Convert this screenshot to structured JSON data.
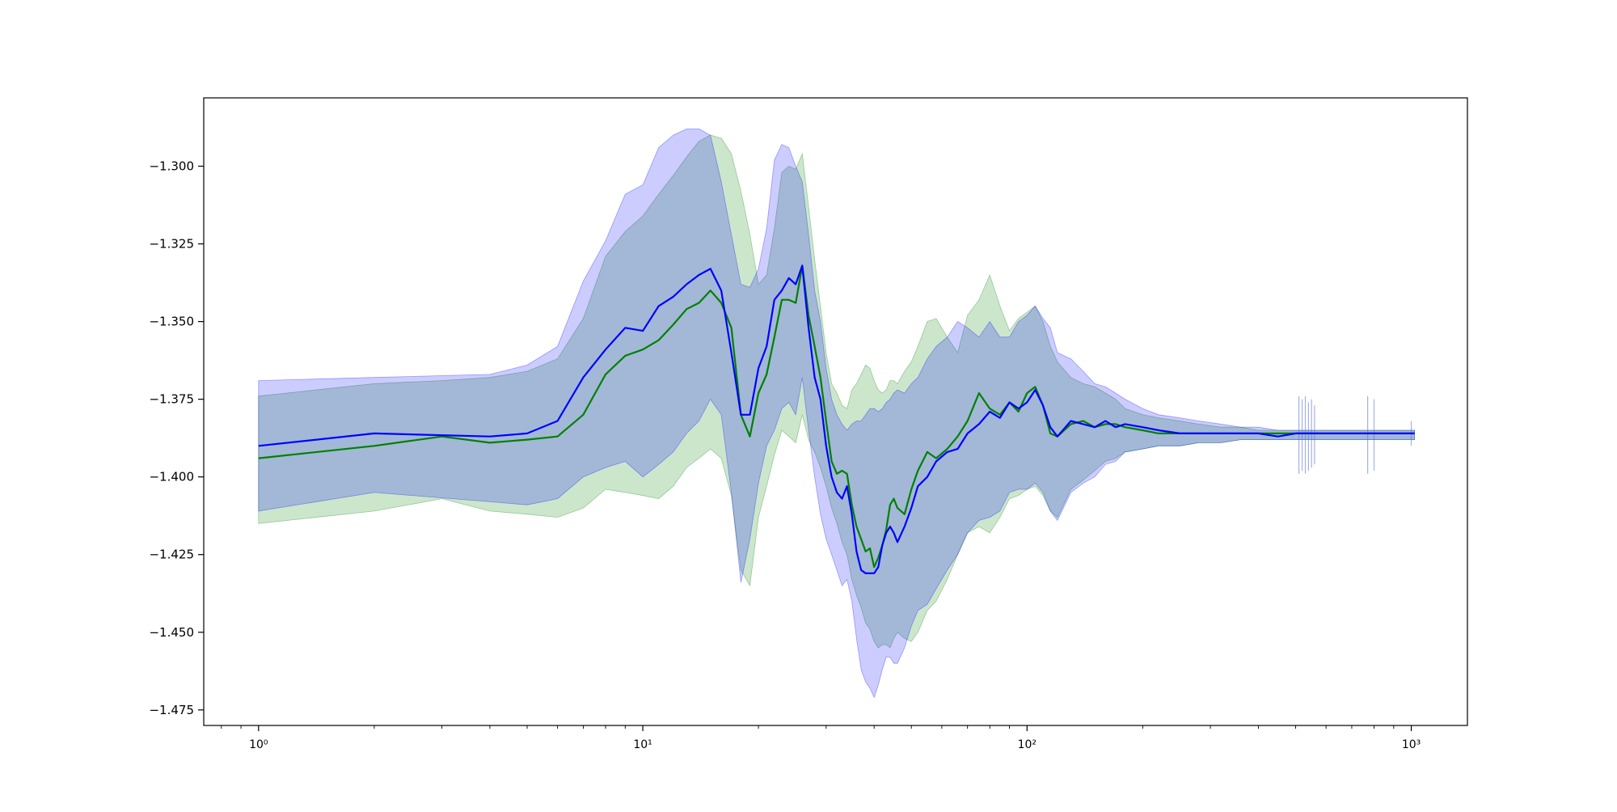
{
  "chart_data": {
    "type": "line",
    "title": "",
    "xlabel": "",
    "ylabel": "",
    "xscale": "log",
    "xlim": [
      0.72,
      1400
    ],
    "ylim": [
      -1.48,
      -1.278
    ],
    "grid": false,
    "legend": "none",
    "x_ticks": [
      {
        "value": 1,
        "label": "10⁰"
      },
      {
        "value": 10,
        "label": "10¹"
      },
      {
        "value": 100,
        "label": "10²"
      },
      {
        "value": 1000,
        "label": "10³"
      }
    ],
    "y_ticks": [
      {
        "value": -1.3,
        "label": "−1.300"
      },
      {
        "value": -1.325,
        "label": "−1.325"
      },
      {
        "value": -1.35,
        "label": "−1.350"
      },
      {
        "value": -1.375,
        "label": "−1.375"
      },
      {
        "value": -1.4,
        "label": "−1.400"
      },
      {
        "value": -1.425,
        "label": "−1.425"
      },
      {
        "value": -1.45,
        "label": "−1.450"
      },
      {
        "value": -1.475,
        "label": "−1.475"
      }
    ],
    "series": [
      {
        "color": "#0000ff",
        "band_color": "#0000ff",
        "band_opacity": 0.2,
        "x": [
          1,
          2,
          4,
          5,
          6,
          7,
          8,
          9,
          10,
          11,
          12,
          13,
          14,
          15,
          16,
          17,
          18,
          19,
          20,
          21,
          22,
          23,
          24,
          25,
          26,
          27,
          28,
          29,
          30,
          31,
          32,
          33,
          34,
          35,
          36,
          37,
          38,
          39,
          40,
          41,
          42,
          43,
          44,
          45,
          46,
          48,
          50,
          52,
          55,
          58,
          62,
          66,
          70,
          75,
          80,
          85,
          90,
          95,
          100,
          105,
          110,
          115,
          120,
          130,
          140,
          150,
          160,
          170,
          180,
          200,
          220,
          250,
          280,
          320,
          360,
          400,
          450,
          500,
          550,
          600,
          700,
          800,
          900,
          1000,
          1020
        ],
        "y": [
          -1.39,
          -1.386,
          -1.387,
          -1.386,
          -1.382,
          -1.368,
          -1.359,
          -1.352,
          -1.353,
          -1.345,
          -1.342,
          -1.338,
          -1.335,
          -1.333,
          -1.34,
          -1.36,
          -1.38,
          -1.38,
          -1.365,
          -1.358,
          -1.343,
          -1.34,
          -1.336,
          -1.338,
          -1.332,
          -1.352,
          -1.368,
          -1.375,
          -1.39,
          -1.4,
          -1.405,
          -1.407,
          -1.403,
          -1.412,
          -1.424,
          -1.43,
          -1.431,
          -1.431,
          -1.431,
          -1.429,
          -1.422,
          -1.418,
          -1.416,
          -1.418,
          -1.421,
          -1.416,
          -1.41,
          -1.403,
          -1.4,
          -1.395,
          -1.392,
          -1.391,
          -1.386,
          -1.383,
          -1.379,
          -1.381,
          -1.376,
          -1.378,
          -1.376,
          -1.372,
          -1.377,
          -1.384,
          -1.387,
          -1.382,
          -1.383,
          -1.384,
          -1.382,
          -1.384,
          -1.383,
          -1.384,
          -1.385,
          -1.386,
          -1.386,
          -1.386,
          -1.386,
          -1.386,
          -1.387,
          -1.386,
          -1.386,
          -1.386,
          -1.386,
          -1.386,
          -1.386,
          -1.386,
          -1.386
        ],
        "upper": [
          -1.369,
          -1.368,
          -1.367,
          -1.364,
          -1.358,
          -1.337,
          -1.324,
          -1.309,
          -1.306,
          -1.294,
          -1.29,
          -1.288,
          -1.288,
          -1.29,
          -1.305,
          -1.322,
          -1.338,
          -1.339,
          -1.333,
          -1.32,
          -1.298,
          -1.293,
          -1.294,
          -1.3,
          -1.305,
          -1.322,
          -1.34,
          -1.35,
          -1.365,
          -1.375,
          -1.38,
          -1.383,
          -1.385,
          -1.383,
          -1.382,
          -1.382,
          -1.38,
          -1.378,
          -1.378,
          -1.379,
          -1.378,
          -1.376,
          -1.375,
          -1.373,
          -1.372,
          -1.373,
          -1.37,
          -1.368,
          -1.362,
          -1.358,
          -1.355,
          -1.35,
          -1.352,
          -1.355,
          -1.35,
          -1.355,
          -1.355,
          -1.35,
          -1.348,
          -1.345,
          -1.349,
          -1.352,
          -1.36,
          -1.362,
          -1.366,
          -1.37,
          -1.371,
          -1.373,
          -1.375,
          -1.378,
          -1.38,
          -1.381,
          -1.382,
          -1.383,
          -1.384,
          -1.384,
          -1.385,
          -1.385,
          -1.385,
          -1.385,
          -1.385,
          -1.385,
          -1.385,
          -1.385,
          -1.385
        ],
        "lower": [
          -1.411,
          -1.405,
          -1.408,
          -1.409,
          -1.407,
          -1.4,
          -1.397,
          -1.395,
          -1.4,
          -1.396,
          -1.392,
          -1.386,
          -1.382,
          -1.375,
          -1.38,
          -1.405,
          -1.434,
          -1.42,
          -1.402,
          -1.39,
          -1.385,
          -1.378,
          -1.376,
          -1.38,
          -1.368,
          -1.385,
          -1.4,
          -1.412,
          -1.42,
          -1.425,
          -1.43,
          -1.435,
          -1.433,
          -1.44,
          -1.452,
          -1.462,
          -1.466,
          -1.468,
          -1.471,
          -1.467,
          -1.462,
          -1.458,
          -1.458,
          -1.46,
          -1.46,
          -1.455,
          -1.448,
          -1.443,
          -1.441,
          -1.436,
          -1.43,
          -1.425,
          -1.418,
          -1.414,
          -1.413,
          -1.411,
          -1.405,
          -1.404,
          -1.404,
          -1.402,
          -1.405,
          -1.411,
          -1.414,
          -1.405,
          -1.402,
          -1.4,
          -1.396,
          -1.395,
          -1.392,
          -1.391,
          -1.39,
          -1.39,
          -1.389,
          -1.389,
          -1.388,
          -1.388,
          -1.388,
          -1.388,
          -1.388,
          -1.388,
          -1.388,
          -1.388,
          -1.388,
          -1.388,
          -1.388
        ]
      },
      {
        "color": "#008000",
        "band_color": "#008000",
        "band_opacity": 0.2,
        "x": [
          1,
          2,
          3,
          4,
          5,
          6,
          7,
          8,
          9,
          10,
          11,
          12,
          13,
          14,
          15,
          16,
          17,
          18,
          19,
          20,
          21,
          22,
          23,
          24,
          25,
          26,
          27,
          28,
          29,
          30,
          31,
          32,
          33,
          34,
          35,
          36,
          37,
          38,
          39,
          40,
          41,
          42,
          43,
          44,
          45,
          46,
          48,
          50,
          52,
          55,
          58,
          62,
          66,
          70,
          75,
          80,
          85,
          90,
          95,
          100,
          105,
          110,
          115,
          120,
          130,
          140,
          150,
          160,
          170,
          180,
          200,
          220,
          250,
          280,
          320,
          360,
          400,
          450,
          500,
          550,
          600,
          700,
          800,
          900,
          1000,
          1020
        ],
        "y": [
          -1.394,
          -1.39,
          -1.387,
          -1.389,
          -1.388,
          -1.387,
          -1.38,
          -1.367,
          -1.361,
          -1.359,
          -1.356,
          -1.351,
          -1.346,
          -1.344,
          -1.34,
          -1.344,
          -1.352,
          -1.38,
          -1.387,
          -1.373,
          -1.367,
          -1.355,
          -1.343,
          -1.343,
          -1.344,
          -1.332,
          -1.348,
          -1.358,
          -1.368,
          -1.382,
          -1.395,
          -1.399,
          -1.398,
          -1.399,
          -1.409,
          -1.416,
          -1.42,
          -1.424,
          -1.423,
          -1.429,
          -1.426,
          -1.422,
          -1.417,
          -1.409,
          -1.407,
          -1.41,
          -1.412,
          -1.404,
          -1.398,
          -1.392,
          -1.394,
          -1.391,
          -1.387,
          -1.382,
          -1.373,
          -1.378,
          -1.38,
          -1.376,
          -1.379,
          -1.373,
          -1.371,
          -1.377,
          -1.386,
          -1.387,
          -1.383,
          -1.382,
          -1.384,
          -1.383,
          -1.383,
          -1.384,
          -1.385,
          -1.386,
          -1.386,
          -1.386,
          -1.386,
          -1.386,
          -1.386,
          -1.386,
          -1.386,
          -1.386,
          -1.386,
          -1.386,
          -1.386,
          -1.386,
          -1.386,
          -1.386
        ],
        "upper": [
          -1.374,
          -1.37,
          -1.369,
          -1.368,
          -1.366,
          -1.362,
          -1.349,
          -1.329,
          -1.321,
          -1.316,
          -1.309,
          -1.303,
          -1.297,
          -1.292,
          -1.29,
          -1.291,
          -1.296,
          -1.308,
          -1.322,
          -1.338,
          -1.335,
          -1.32,
          -1.302,
          -1.3,
          -1.301,
          -1.296,
          -1.313,
          -1.33,
          -1.345,
          -1.36,
          -1.37,
          -1.373,
          -1.377,
          -1.378,
          -1.372,
          -1.37,
          -1.367,
          -1.364,
          -1.365,
          -1.369,
          -1.372,
          -1.373,
          -1.372,
          -1.369,
          -1.369,
          -1.37,
          -1.366,
          -1.363,
          -1.358,
          -1.35,
          -1.349,
          -1.355,
          -1.36,
          -1.348,
          -1.343,
          -1.335,
          -1.345,
          -1.353,
          -1.349,
          -1.347,
          -1.345,
          -1.35,
          -1.358,
          -1.363,
          -1.368,
          -1.37,
          -1.371,
          -1.373,
          -1.375,
          -1.378,
          -1.38,
          -1.381,
          -1.382,
          -1.383,
          -1.384,
          -1.384,
          -1.385,
          -1.385,
          -1.385,
          -1.385,
          -1.385,
          -1.385,
          -1.385,
          -1.385,
          -1.385,
          -1.385
        ],
        "lower": [
          -1.415,
          -1.411,
          -1.407,
          -1.411,
          -1.412,
          -1.413,
          -1.41,
          -1.404,
          -1.405,
          -1.406,
          -1.407,
          -1.403,
          -1.397,
          -1.394,
          -1.391,
          -1.394,
          -1.406,
          -1.43,
          -1.435,
          -1.413,
          -1.403,
          -1.393,
          -1.385,
          -1.387,
          -1.389,
          -1.38,
          -1.388,
          -1.392,
          -1.397,
          -1.403,
          -1.41,
          -1.415,
          -1.421,
          -1.425,
          -1.433,
          -1.438,
          -1.442,
          -1.447,
          -1.449,
          -1.453,
          -1.455,
          -1.454,
          -1.454,
          -1.455,
          -1.452,
          -1.45,
          -1.452,
          -1.453,
          -1.45,
          -1.443,
          -1.44,
          -1.433,
          -1.425,
          -1.418,
          -1.416,
          -1.418,
          -1.413,
          -1.407,
          -1.406,
          -1.404,
          -1.403,
          -1.406,
          -1.411,
          -1.413,
          -1.404,
          -1.401,
          -1.398,
          -1.395,
          -1.394,
          -1.392,
          -1.391,
          -1.39,
          -1.39,
          -1.389,
          -1.389,
          -1.388,
          -1.388,
          -1.388,
          -1.388,
          -1.388,
          -1.388,
          -1.388,
          -1.388,
          -1.388,
          -1.388,
          -1.388
        ]
      }
    ],
    "spikes": [
      {
        "x": 510,
        "y_min": -1.399,
        "y_max": -1.374
      },
      {
        "x": 520,
        "y_min": -1.398,
        "y_max": -1.375
      },
      {
        "x": 530,
        "y_min": -1.399,
        "y_max": -1.374
      },
      {
        "x": 540,
        "y_min": -1.398,
        "y_max": -1.376
      },
      {
        "x": 550,
        "y_min": -1.397,
        "y_max": -1.375
      },
      {
        "x": 560,
        "y_min": -1.396,
        "y_max": -1.377
      },
      {
        "x": 770,
        "y_min": -1.399,
        "y_max": -1.374
      },
      {
        "x": 800,
        "y_min": -1.398,
        "y_max": -1.375
      },
      {
        "x": 1000,
        "y_min": -1.39,
        "y_max": -1.382
      }
    ]
  }
}
